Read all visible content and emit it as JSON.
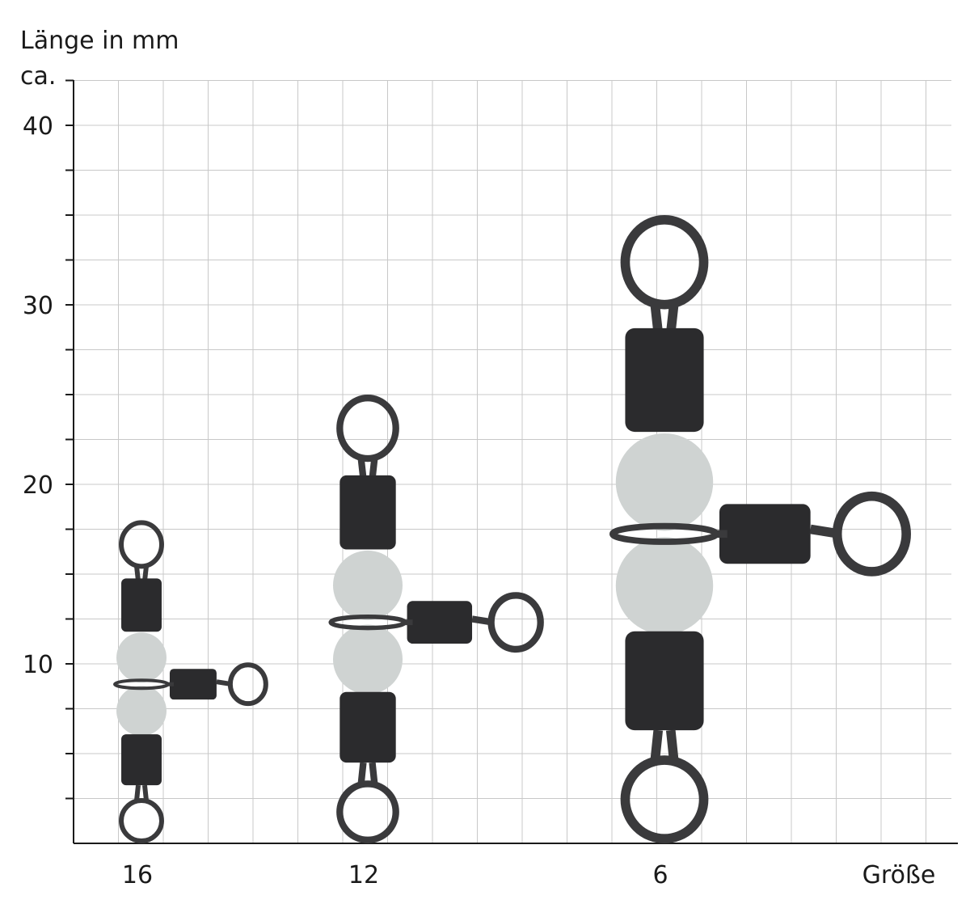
{
  "chart_data": {
    "type": "bar",
    "ylabel_line1": "Länge in mm",
    "ylabel_line2": "ca.",
    "xlabel": "Größe",
    "categories": [
      "16",
      "12",
      "6"
    ],
    "values": [
      18,
      25,
      35
    ],
    "ylim": [
      0,
      42.5
    ],
    "yticks": [
      10,
      20,
      30,
      40
    ],
    "minor_tick_step": 2.5,
    "grid": true,
    "colors": {
      "grid": "#c8c8c8",
      "axis": "#1a1a1a",
      "barrel": "#2b2b2d",
      "bead": "#cfd3d2",
      "wire": "#3a3a3c"
    }
  }
}
